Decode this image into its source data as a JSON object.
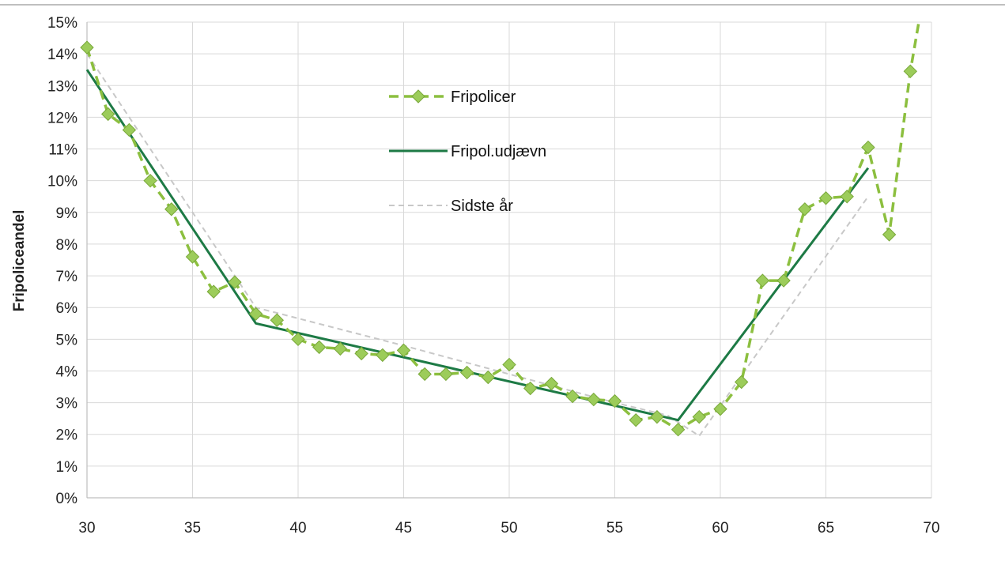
{
  "chart_data": {
    "type": "line",
    "ylabel": "Fripoliceandel",
    "xlabel": "",
    "xlim": [
      30,
      70
    ],
    "ylim": [
      0,
      15
    ],
    "x_ticks": [
      "30",
      "35",
      "40",
      "45",
      "50",
      "55",
      "60",
      "65",
      "70"
    ],
    "y_ticks": [
      "0%",
      "1%",
      "2%",
      "3%",
      "4%",
      "5%",
      "6%",
      "7%",
      "8%",
      "9%",
      "10%",
      "11%",
      "12%",
      "13%",
      "14%",
      "15%"
    ],
    "grid": true,
    "legend_position": "upper-center",
    "series": [
      {
        "name": "Fripolicer",
        "style": "dashed-with-diamond-markers",
        "color": "#8cbf3f",
        "x": [
          30,
          31,
          32,
          33,
          34,
          35,
          36,
          37,
          38,
          39,
          40,
          41,
          42,
          43,
          44,
          45,
          46,
          47,
          48,
          49,
          50,
          51,
          52,
          53,
          54,
          55,
          56,
          57,
          58,
          59,
          60,
          61,
          62,
          63,
          64,
          65,
          66,
          67,
          68,
          69,
          69.4
        ],
        "y": [
          14.2,
          12.1,
          11.6,
          10.0,
          9.1,
          7.6,
          6.5,
          6.8,
          5.8,
          5.6,
          5.0,
          4.75,
          4.7,
          4.55,
          4.5,
          4.65,
          3.9,
          3.9,
          3.95,
          3.8,
          4.2,
          3.45,
          3.6,
          3.2,
          3.1,
          3.05,
          2.45,
          2.55,
          2.15,
          2.55,
          2.8,
          3.65,
          6.85,
          6.85,
          9.1,
          9.45,
          9.5,
          11.05,
          8.3,
          13.45,
          15.0
        ],
        "markers_x": [
          30,
          31,
          32,
          33,
          34,
          35,
          36,
          37,
          38,
          39,
          40,
          41,
          42,
          43,
          44,
          45,
          46,
          47,
          48,
          49,
          50,
          51,
          52,
          53,
          54,
          55,
          56,
          57,
          58,
          59,
          60,
          61,
          62,
          63,
          64,
          65,
          66,
          67,
          68,
          69
        ]
      },
      {
        "name": "Fripol.udjævn",
        "style": "solid",
        "color": "#1d7a45",
        "x": [
          30,
          38,
          58,
          67
        ],
        "y": [
          13.5,
          5.5,
          2.45,
          10.4
        ]
      },
      {
        "name": "Sidste år",
        "style": "dashed",
        "color": "#c8c8c8",
        "x": [
          30,
          38,
          45,
          50,
          55,
          57.5,
          59,
          62,
          67
        ],
        "y": [
          14.0,
          6.0,
          4.8,
          3.9,
          3.0,
          2.6,
          1.95,
          4.8,
          9.5
        ]
      }
    ]
  }
}
